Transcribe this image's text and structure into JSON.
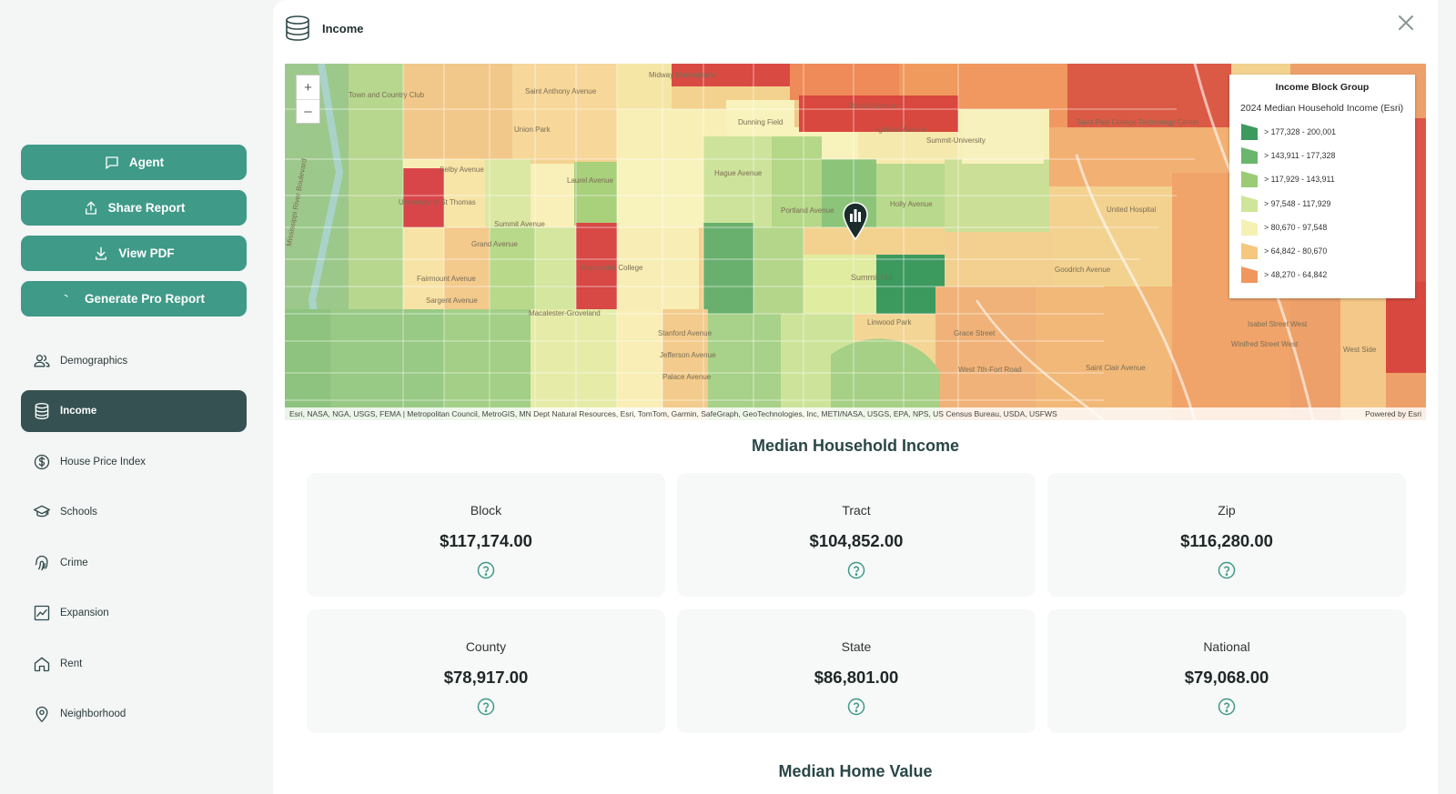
{
  "sidebar": {
    "actions": [
      {
        "label": "Agent",
        "icon": "chat-bubble-icon"
      },
      {
        "label": "Share Report",
        "icon": "share-upload-icon"
      },
      {
        "label": "View PDF",
        "icon": "download-icon"
      },
      {
        "label": "Generate Pro Report",
        "icon": "spinner-icon"
      }
    ],
    "nav": [
      {
        "label": "Demographics",
        "icon": "people-icon",
        "active": false
      },
      {
        "label": "Income",
        "icon": "database-icon",
        "active": true
      },
      {
        "label": "House Price Index",
        "icon": "dollar-circle-icon",
        "active": false
      },
      {
        "label": "Schools",
        "icon": "graduation-cap-icon",
        "active": false
      },
      {
        "label": "Crime",
        "icon": "fingerprint-icon",
        "active": false
      },
      {
        "label": "Expansion",
        "icon": "trend-chart-icon",
        "active": false
      },
      {
        "label": "Rent",
        "icon": "house-icon",
        "active": false
      },
      {
        "label": "Neighborhood",
        "icon": "location-pin-icon",
        "active": false
      }
    ]
  },
  "panel": {
    "title": "Income",
    "icon": "database-icon"
  },
  "map": {
    "zoom_in": "+",
    "zoom_out": "–",
    "attribution": "Esri, NASA, NGA, USGS, FEMA | Metropolitan Council, MetroGIS, MN Dept Natural Resources, Esri, TomTom, Garmin, SafeGraph, GeoTechnologies, Inc, METI/NASA, USGS, EPA, NPS, US Census Bureau, USDA, USFWS",
    "powered_by": "Powered by Esri",
    "legend": {
      "title": "Income Block Group",
      "subtitle": "2024 Median Household Income (Esri)",
      "items": [
        {
          "label": "> 177,328 - 200,001",
          "color": "#3c9a5f"
        },
        {
          "label": "> 143,911 - 177,328",
          "color": "#6cb56d"
        },
        {
          "label": "> 117,929 - 143,911",
          "color": "#9ccb75"
        },
        {
          "label": "> 97,548 - 117,929",
          "color": "#cfe59a"
        },
        {
          "label": "> 80,670 - 97,548",
          "color": "#f6f0b4"
        },
        {
          "label": "> 64,842 - 80,670",
          "color": "#f5c77f"
        },
        {
          "label": "> 48,270 - 64,842",
          "color": "#f0975e"
        }
      ]
    },
    "labels": [
      "Town and Country Club",
      "Union Park",
      "Midway Marketplace",
      "Saint Anthony Avenue",
      "Dunning Field",
      "Rondo Avenue",
      "Iglehart Avenue",
      "Summit-University",
      "Saint Paul College Technology Center",
      "University of St Thomas",
      "Selby Avenue",
      "Laurel Avenue",
      "Hague Avenue",
      "Portland Avenue",
      "Summit Avenue",
      "Grand Avenue",
      "Holly Avenue",
      "United Hospital",
      "Macalester College",
      "Fairmount Avenue",
      "Summit Hill",
      "Sargent Avenue",
      "Macalester-Groveland",
      "Linwood Park",
      "Goodrich Avenue",
      "Stanford Avenue",
      "Jefferson Avenue",
      "Palace Avenue",
      "Grace Street",
      "West 7th-Fort Road",
      "Isabel Street West",
      "Winifred Street West",
      "West Side",
      "Mississippi River Boulevard",
      "Saint Clair Avenue"
    ]
  },
  "income": {
    "title": "Median Household Income",
    "cards": [
      {
        "label": "Block",
        "value": "$117,174.00"
      },
      {
        "label": "Tract",
        "value": "$104,852.00"
      },
      {
        "label": "Zip",
        "value": "$116,280.00"
      },
      {
        "label": "County",
        "value": "$78,917.00"
      },
      {
        "label": "State",
        "value": "$86,801.00"
      },
      {
        "label": "National",
        "value": "$79,068.00"
      }
    ]
  },
  "home_value": {
    "title": "Median Home Value"
  }
}
